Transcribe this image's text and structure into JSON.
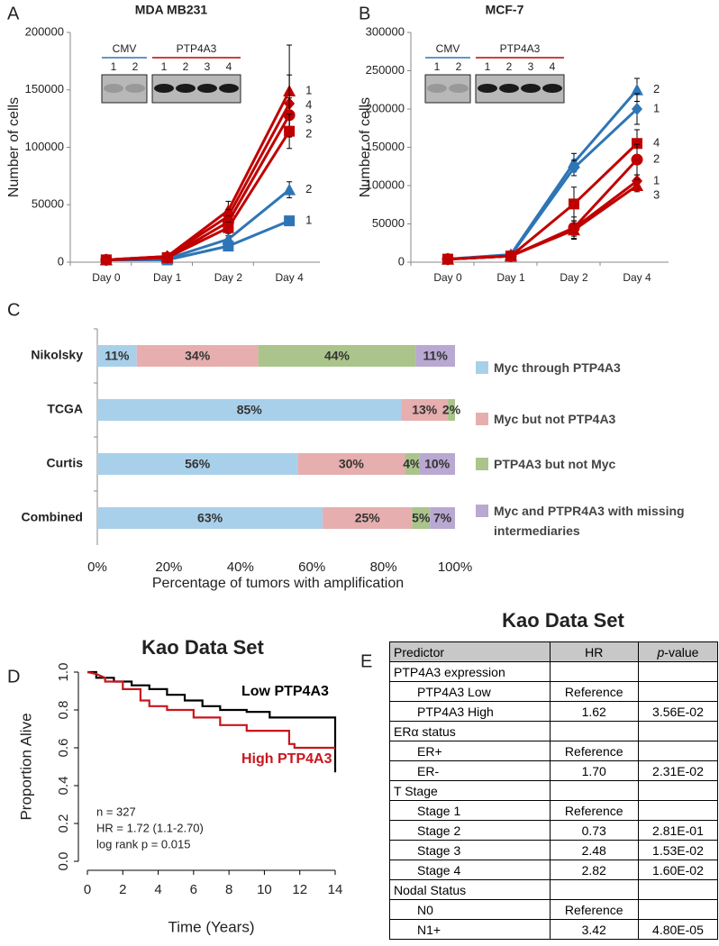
{
  "chart_data": [
    {
      "type": "line",
      "panel": "A",
      "title": "MDA MB231",
      "y_label": "Number of cells",
      "categories": [
        "Day 0",
        "Day 1",
        "Day 2",
        "Day 4"
      ],
      "ylim": [
        0,
        200000
      ],
      "yticks": [
        0,
        50000,
        100000,
        150000,
        200000
      ],
      "inset": {
        "groups": [
          {
            "label": "CMV",
            "color": "#2e75b6",
            "lanes": [
              "1",
              "2"
            ]
          },
          {
            "label": "PTP4A3",
            "color": "#c00000",
            "lanes": [
              "1",
              "2",
              "3",
              "4"
            ]
          }
        ]
      },
      "series": [
        {
          "name": "1",
          "color": "#2e75b6",
          "marker": "square",
          "values": [
            2000,
            2000,
            14000,
            36000
          ],
          "errors": [
            0,
            500,
            2000,
            3000
          ]
        },
        {
          "name": "2",
          "color": "#2e75b6",
          "marker": "triangle",
          "values": [
            2000,
            3000,
            20000,
            63000
          ],
          "errors": [
            0,
            500,
            3000,
            7000
          ]
        },
        {
          "name": "1",
          "color": "#c00000",
          "marker": "triangle",
          "values": [
            2000,
            5000,
            45000,
            149000
          ],
          "errors": [
            0,
            1000,
            8000,
            40000
          ]
        },
        {
          "name": "4",
          "color": "#c00000",
          "marker": "diamond",
          "values": [
            2000,
            5000,
            40000,
            138000
          ],
          "errors": [
            0,
            1000,
            6000,
            25000
          ]
        },
        {
          "name": "3",
          "color": "#c00000",
          "marker": "circle",
          "values": [
            2000,
            4000,
            35000,
            128000
          ],
          "errors": [
            0,
            1000,
            5000,
            15000
          ]
        },
        {
          "name": "2",
          "color": "#c00000",
          "marker": "square",
          "values": [
            2000,
            4000,
            30000,
            114000
          ],
          "errors": [
            0,
            1000,
            5000,
            15000
          ]
        }
      ]
    },
    {
      "type": "line",
      "panel": "B",
      "title": "MCF-7",
      "y_label": "Number of cells",
      "categories": [
        "Day 0",
        "Day 1",
        "Day 2",
        "Day 4"
      ],
      "ylim": [
        0,
        300000
      ],
      "yticks": [
        0,
        50000,
        100000,
        150000,
        200000,
        250000,
        300000
      ],
      "inset": {
        "groups": [
          {
            "label": "CMV",
            "color": "#2e75b6",
            "lanes": [
              "1",
              "2"
            ]
          },
          {
            "label": "PTP4A3",
            "color": "#c00000",
            "lanes": [
              "1",
              "2",
              "3",
              "4"
            ]
          }
        ]
      },
      "series": [
        {
          "name": "2",
          "color": "#2e75b6",
          "marker": "triangle",
          "values": [
            4000,
            10000,
            130000,
            225000
          ],
          "errors": [
            0,
            1000,
            12000,
            15000
          ]
        },
        {
          "name": "1",
          "color": "#2e75b6",
          "marker": "diamond",
          "values": [
            4000,
            9000,
            123000,
            200000
          ],
          "errors": [
            0,
            1000,
            10000,
            20000
          ]
        },
        {
          "name": "4",
          "color": "#c00000",
          "marker": "square",
          "values": [
            4000,
            8000,
            76000,
            155000
          ],
          "errors": [
            0,
            1000,
            22000,
            18000
          ]
        },
        {
          "name": "2",
          "color": "#c00000",
          "marker": "circle",
          "values": [
            4000,
            8000,
            45000,
            134000
          ],
          "errors": [
            0,
            1000,
            14000,
            20000
          ]
        },
        {
          "name": "1",
          "color": "#c00000",
          "marker": "diamond",
          "values": [
            4000,
            8000,
            44000,
            106000
          ],
          "errors": [
            0,
            1000,
            10000,
            8000
          ]
        },
        {
          "name": "3",
          "color": "#c00000",
          "marker": "triangle",
          "values": [
            4000,
            8000,
            42000,
            100000
          ],
          "errors": [
            0,
            1000,
            12000,
            8000
          ]
        }
      ]
    },
    {
      "type": "bar",
      "panel": "C",
      "orientation": "horizontal",
      "stacked": true,
      "x_label": "Percentage of tumors with amplification",
      "categories": [
        "Nikolsky",
        "TCGA",
        "Curtis",
        "Combined"
      ],
      "xlim": [
        0,
        100
      ],
      "xticks": [
        {
          "value": 0,
          "label": "0%"
        },
        {
          "value": 20,
          "label": "20%"
        },
        {
          "value": 40,
          "label": "40%"
        },
        {
          "value": 60,
          "label": "60%"
        },
        {
          "value": 80,
          "label": "80%"
        },
        {
          "value": 100,
          "label": "100%"
        }
      ],
      "series": [
        {
          "name": "Myc through PTP4A3",
          "color": "#a9d0ea",
          "values": [
            11,
            85,
            56,
            63
          ],
          "value_labels": [
            "11%",
            "85%",
            "56%",
            "63%"
          ]
        },
        {
          "name": "Myc but not PTP4A3",
          "color": "#e6aeae",
          "values": [
            34,
            13,
            30,
            25
          ],
          "value_labels": [
            "34%",
            "13%",
            "30%",
            "25%"
          ]
        },
        {
          "name": "PTP4A3 but not Myc",
          "color": "#aac48b",
          "values": [
            44,
            2,
            4,
            5
          ],
          "value_labels": [
            "44%",
            "2%",
            "4%",
            "5%"
          ]
        },
        {
          "name": "Myc and PTPR4A3 with missing intermediaries",
          "color": "#b9a8d1",
          "values": [
            11,
            0,
            10,
            7
          ],
          "value_labels": [
            "11%",
            null,
            "10%",
            "7%"
          ]
        }
      ]
    },
    {
      "type": "step",
      "panel": "D",
      "title": "Kao Data Set",
      "x_label": "Time (Years)",
      "y_label": "Proportion Alive",
      "xlim": [
        0,
        14
      ],
      "xticks": [
        0,
        2,
        4,
        6,
        8,
        10,
        12,
        14
      ],
      "ylim": [
        0,
        1
      ],
      "yticks": [
        {
          "value": 0,
          "label": "0.0"
        },
        {
          "value": 0.2,
          "label": "0.2"
        },
        {
          "value": 0.4,
          "label": "0.4"
        },
        {
          "value": 0.6,
          "label": "0.6"
        },
        {
          "value": 0.8,
          "label": "0.8"
        },
        {
          "value": 1,
          "label": "1.0"
        }
      ],
      "annotations": [
        "n = 327",
        "HR = 1.72 (1.1-2.70)",
        "log rank p = 0.015"
      ],
      "series": [
        {
          "name": "Low PTP4A3",
          "color": "#000000",
          "x": [
            0,
            0.5,
            0.5,
            1.5,
            1.5,
            2.5,
            2.5,
            3.5,
            3.5,
            4.5,
            4.5,
            5.5,
            5.5,
            6.5,
            6.5,
            7.5,
            7.5,
            9,
            9,
            10.3,
            10.3,
            14,
            14
          ],
          "values": [
            1,
            1,
            0.97,
            0.97,
            0.95,
            0.95,
            0.93,
            0.93,
            0.91,
            0.91,
            0.88,
            0.88,
            0.85,
            0.85,
            0.82,
            0.82,
            0.8,
            0.8,
            0.79,
            0.79,
            0.76,
            0.76,
            0.47
          ]
        },
        {
          "name": "High PTP4A3",
          "color": "#c8161d",
          "x": [
            0,
            0.5,
            1,
            1,
            2,
            2,
            3,
            3,
            3.5,
            3.5,
            4.5,
            4.5,
            6,
            6,
            7.5,
            7.5,
            9,
            9,
            11.4,
            11.4,
            11.7,
            11.7,
            14
          ],
          "values": [
            1,
            0.99,
            0.97,
            0.95,
            0.95,
            0.91,
            0.91,
            0.85,
            0.85,
            0.82,
            0.82,
            0.8,
            0.8,
            0.76,
            0.76,
            0.72,
            0.72,
            0.69,
            0.69,
            0.62,
            0.62,
            0.6,
            0.6
          ]
        }
      ]
    }
  ],
  "table_panel": {
    "panel": "E",
    "title": "Kao Data Set",
    "columns": [
      "Predictor",
      "HR",
      "p-value"
    ],
    "rows": [
      [
        "PTP4A3 expression",
        null,
        null
      ],
      [
        "PTP4A3 Low",
        "Reference",
        null
      ],
      [
        "PTP4A3 High",
        "1.62",
        "3.56E-02"
      ],
      [
        "ERα status",
        null,
        null
      ],
      [
        "ER+",
        "Reference",
        null
      ],
      [
        "ER-",
        "1.70",
        "2.31E-02"
      ],
      [
        "T Stage",
        null,
        null
      ],
      [
        "Stage 1",
        "Reference",
        null
      ],
      [
        "Stage 2",
        "0.73",
        "2.81E-01"
      ],
      [
        "Stage 3",
        "2.48",
        "1.53E-02"
      ],
      [
        "Stage 4",
        "2.82",
        "1.60E-02"
      ],
      [
        "Nodal Status",
        null,
        null
      ],
      [
        "N0",
        "Reference",
        null
      ],
      [
        "N1+",
        "3.42",
        "4.80E-05"
      ]
    ]
  }
}
